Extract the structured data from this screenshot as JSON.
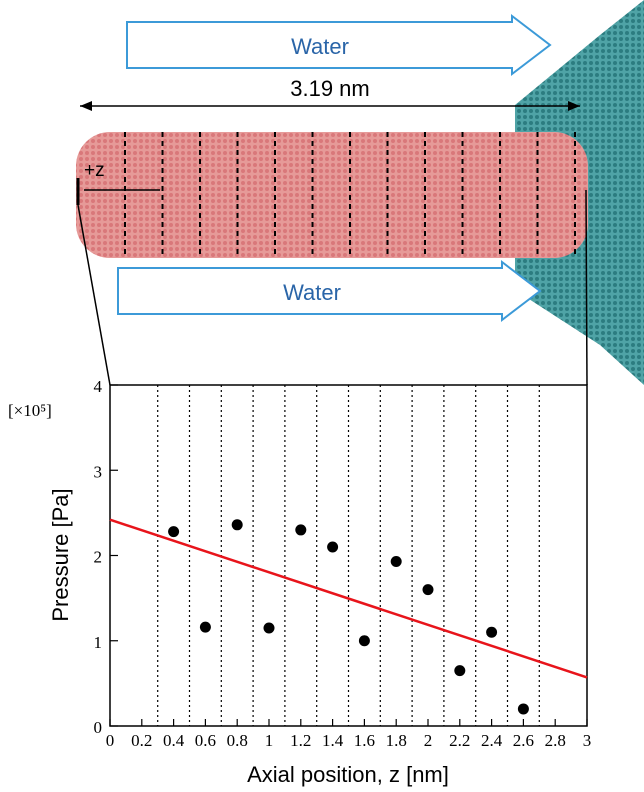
{
  "illustration": {
    "top_flow": "Water",
    "length": "3.19 nm",
    "axis": "+z",
    "bottom_flow": "Water"
  },
  "chart_data": {
    "type": "scatter",
    "x_label": "Axial position, z [nm]",
    "y_label": "Pressure [Pa]",
    "y_multiplier": "[×10⁵]",
    "xlim": [
      0,
      3
    ],
    "ylim": [
      0,
      4
    ],
    "xticks": [
      0,
      0.2,
      0.4,
      0.6,
      0.8,
      1,
      1.2,
      1.4,
      1.6,
      1.8,
      2,
      2.2,
      2.4,
      2.6,
      2.8,
      3
    ],
    "yticks": [
      0,
      1,
      2,
      3,
      4
    ],
    "dividers": [
      0.3,
      0.5,
      0.7,
      0.9,
      1.1,
      1.3,
      1.5,
      1.7,
      1.9,
      2.1,
      2.3,
      2.5,
      2.7
    ],
    "series": [
      {
        "type": "scatter",
        "color": "#000000",
        "x": [
          0.4,
          0.6,
          0.8,
          1.0,
          1.2,
          1.4,
          1.6,
          1.8,
          2.0,
          2.2,
          2.4,
          2.6
        ],
        "values": [
          2.28,
          1.16,
          2.36,
          1.15,
          2.3,
          2.1,
          1.0,
          1.93,
          1.6,
          0.65,
          1.1,
          0.2
        ]
      },
      {
        "type": "line",
        "color": "#e8141b",
        "x": [
          0,
          3
        ],
        "values": [
          2.42,
          0.57
        ]
      }
    ]
  }
}
